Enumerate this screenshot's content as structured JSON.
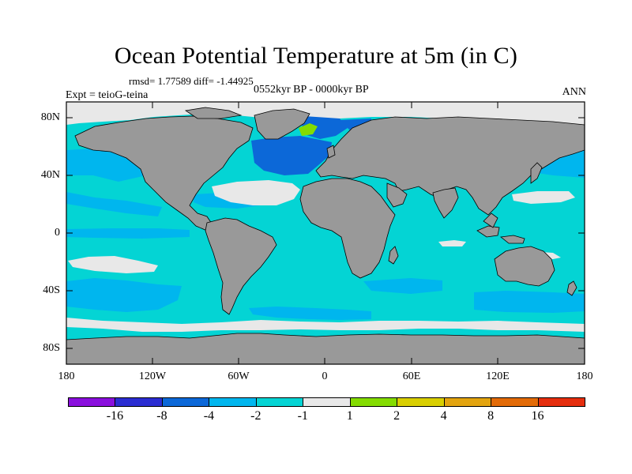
{
  "title": "Ocean Potential Temperature at 5m (in C)",
  "stats": "rmsd= 1.77589  diff= -1.44925",
  "period": "0552kyr BP - 0000kyr BP",
  "experiment": "Expt = teioG-teina",
  "season": "ANN",
  "lat_labels": [
    "80N",
    "40N",
    "0",
    "40S",
    "80S"
  ],
  "lon_labels": [
    "180",
    "120W",
    "60W",
    "0",
    "60E",
    "120E",
    "180"
  ],
  "colors": {
    "land": "#999999",
    "ocean_main": "#04d4d4",
    "ocean_light": "#00b6ee",
    "ocean_mid": "#0c68d8",
    "near_zero": "#e8e8e8",
    "warm_green": "#84dc00"
  },
  "colorbar": {
    "colors": [
      "#8a10dd",
      "#2b2dd2",
      "#0c68d8",
      "#00b6ee",
      "#04d4d4",
      "#e8e8e8",
      "#84dc00",
      "#d9cf00",
      "#e3a40f",
      "#e36b07",
      "#e52e0e"
    ],
    "labels": [
      "-16",
      "-8",
      "-4",
      "-2",
      "-1",
      "1",
      "2",
      "4",
      "8",
      "16"
    ]
  }
}
